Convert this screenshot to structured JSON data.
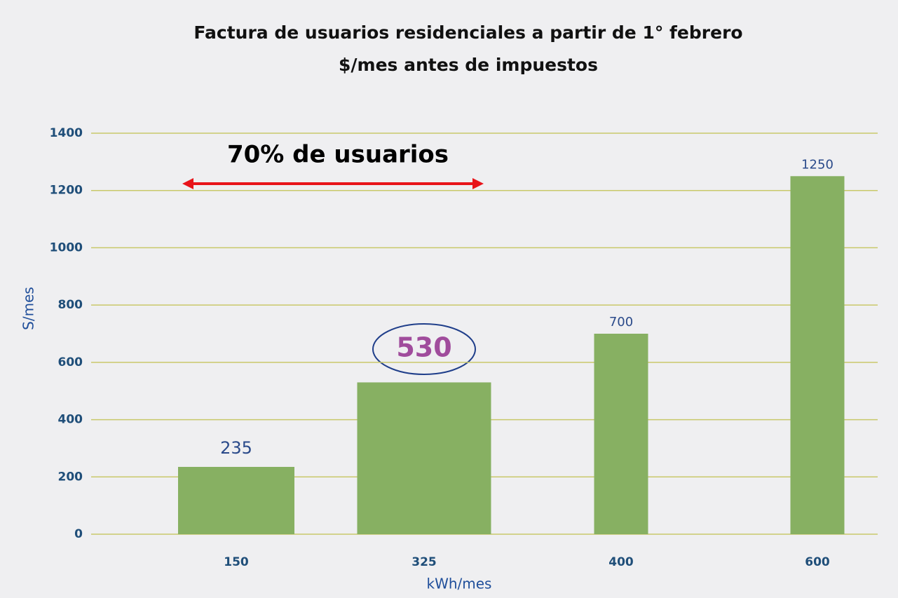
{
  "chart_data": {
    "type": "bar",
    "title": [
      "Factura de usuarios residenciales a partir de 1° febrero",
      "$/mes antes de impuestos"
    ],
    "annotation": "70% de usuarios",
    "xlabel": "kWh/mes",
    "ylabel": "S/mes",
    "categories": [
      "150",
      "325",
      "400",
      "600"
    ],
    "values": [
      235,
      530,
      700,
      1250
    ],
    "color": "#87b062",
    "ylim": [
      0,
      1400
    ],
    "yticks": [
      0,
      200,
      400,
      600,
      800,
      1000,
      1200,
      1400
    ],
    "grid": true
  }
}
